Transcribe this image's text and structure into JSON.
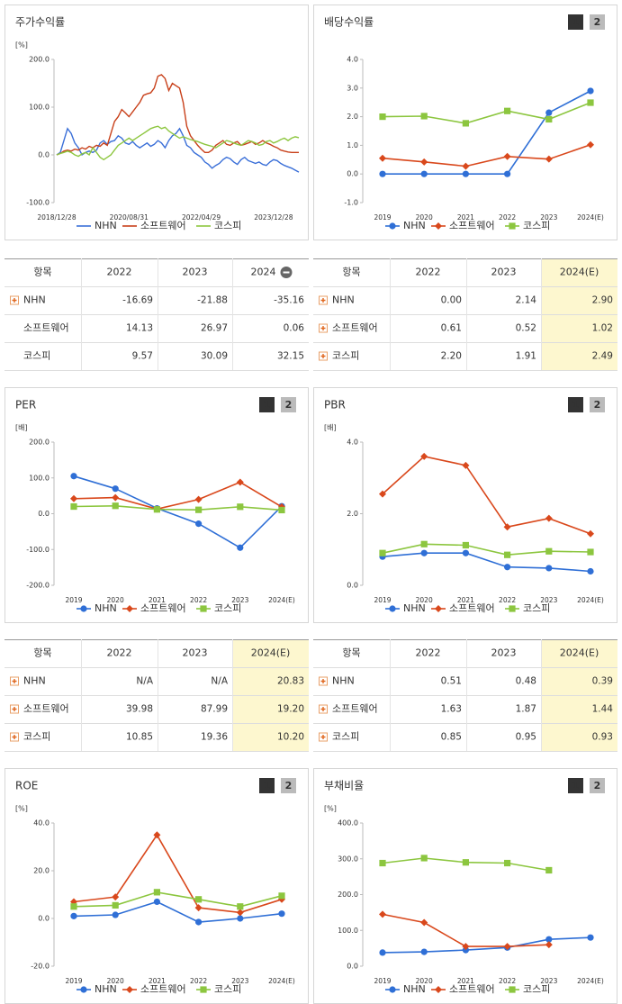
{
  "chart_data": [
    {
      "type": "line",
      "title": "주가수익률",
      "y_label": "[%]",
      "ylim": [
        -100,
        200
      ],
      "yticks": [
        {
          "value": 200,
          "label": "200.0"
        },
        {
          "value": 100,
          "label": "100.0"
        },
        {
          "value": 0,
          "label": "0.0"
        },
        {
          "value": -100,
          "label": "-100.0"
        }
      ],
      "categories": [
        "2018/12/28",
        null,
        null,
        null,
        null,
        null,
        null,
        null,
        null,
        null,
        null,
        null,
        null,
        null,
        null,
        null,
        null,
        null,
        null,
        null,
        "2020/08/31",
        null,
        null,
        null,
        null,
        null,
        null,
        null,
        null,
        null,
        null,
        null,
        null,
        null,
        null,
        null,
        null,
        null,
        null,
        null,
        "2022/04/29",
        null,
        null,
        null,
        null,
        null,
        null,
        null,
        null,
        null,
        null,
        null,
        null,
        null,
        null,
        null,
        null,
        null,
        null,
        null,
        "2023/12/28",
        null,
        null,
        null,
        null,
        null,
        null,
        null
      ],
      "markers": false,
      "series": [
        {
          "name": "NHN",
          "color": "#3a6fd8",
          "marker": "circle",
          "values": [
            0,
            5,
            30,
            55,
            45,
            25,
            15,
            0,
            5,
            8,
            5,
            10,
            25,
            30,
            22,
            28,
            30,
            40,
            35,
            25,
            22,
            28,
            20,
            15,
            20,
            25,
            18,
            22,
            30,
            25,
            15,
            30,
            40,
            45,
            55,
            40,
            20,
            15,
            5,
            0,
            -5,
            -15,
            -20,
            -28,
            -22,
            -18,
            -10,
            -5,
            -8,
            -15,
            -20,
            -10,
            -5,
            -12,
            -15,
            -18,
            -15,
            -20,
            -22,
            -15,
            -10,
            -12,
            -18,
            -22,
            -25,
            -28,
            -32,
            -36
          ]
        },
        {
          "name": "소프트웨어",
          "color": "#c8401a",
          "marker": "diamond",
          "values": [
            0,
            3,
            8,
            10,
            8,
            12,
            10,
            15,
            12,
            18,
            15,
            20,
            18,
            25,
            20,
            45,
            70,
            80,
            95,
            88,
            80,
            90,
            100,
            110,
            125,
            128,
            130,
            140,
            165,
            168,
            160,
            135,
            150,
            145,
            140,
            110,
            60,
            40,
            30,
            20,
            12,
            5,
            5,
            10,
            20,
            25,
            30,
            22,
            20,
            25,
            28,
            20,
            22,
            25,
            28,
            22,
            25,
            30,
            25,
            22,
            18,
            15,
            10,
            8,
            6,
            5,
            5,
            5
          ]
        },
        {
          "name": "코스피",
          "color": "#8dc63f",
          "marker": "square",
          "values": [
            0,
            3,
            5,
            8,
            5,
            0,
            -3,
            2,
            5,
            0,
            15,
            5,
            -5,
            -10,
            -5,
            0,
            10,
            20,
            25,
            30,
            35,
            30,
            35,
            40,
            45,
            50,
            55,
            58,
            60,
            55,
            58,
            50,
            45,
            40,
            35,
            38,
            35,
            32,
            30,
            28,
            25,
            22,
            20,
            18,
            15,
            20,
            25,
            30,
            28,
            25,
            22,
            20,
            25,
            30,
            28,
            25,
            20,
            22,
            28,
            30,
            25,
            28,
            32,
            35,
            30,
            35,
            38,
            36
          ]
        }
      ]
    },
    {
      "type": "line",
      "title": "배당수익률",
      "buttons": [
        "1",
        "2"
      ],
      "ylim": [
        -1,
        4
      ],
      "yticks": [
        {
          "value": 4,
          "label": "4.0"
        },
        {
          "value": 3,
          "label": "3.0"
        },
        {
          "value": 2,
          "label": "2.0"
        },
        {
          "value": 1,
          "label": "1.0"
        },
        {
          "value": 0,
          "label": "0.0"
        },
        {
          "value": -1,
          "label": "-1.0"
        }
      ],
      "categories": [
        "2019",
        "2020",
        "2021",
        "2022",
        "2023",
        "2024(E)"
      ],
      "markers": true,
      "series": [
        {
          "name": "NHN",
          "color": "#2f6fd6",
          "marker": "circle",
          "values": [
            0,
            0,
            0,
            0,
            2.14,
            2.9
          ]
        },
        {
          "name": "소프트웨어",
          "color": "#d9481c",
          "marker": "diamond",
          "values": [
            0.55,
            0.42,
            0.27,
            0.61,
            0.52,
            1.02
          ]
        },
        {
          "name": "코스피",
          "color": "#8cc63f",
          "marker": "square",
          "values": [
            2.0,
            2.02,
            1.77,
            2.2,
            1.91,
            2.49
          ]
        }
      ]
    },
    {
      "type": "line",
      "title": "PER",
      "buttons": [
        "1",
        "2"
      ],
      "y_label": "[배]",
      "ylim": [
        -200,
        200
      ],
      "yticks": [
        {
          "value": 200,
          "label": "200.0"
        },
        {
          "value": 100,
          "label": "100.0"
        },
        {
          "value": 0,
          "label": "0.0"
        },
        {
          "value": -100,
          "label": "-100.0"
        },
        {
          "value": -200,
          "label": "-200.0"
        }
      ],
      "categories": [
        "2019",
        "2020",
        "2021",
        "2022",
        "2023",
        "2024(E)"
      ],
      "markers": true,
      "series": [
        {
          "name": "NHN",
          "color": "#2f6fd6",
          "marker": "circle",
          "values": [
            105,
            70,
            15,
            -28,
            -95,
            20.83
          ]
        },
        {
          "name": "소프트웨어",
          "color": "#d9481c",
          "marker": "diamond",
          "values": [
            42,
            45,
            13,
            39.98,
            87.99,
            19.2
          ]
        },
        {
          "name": "코스피",
          "color": "#8cc63f",
          "marker": "square",
          "values": [
            20,
            22,
            12,
            10.85,
            19.36,
            10.2
          ]
        }
      ]
    },
    {
      "type": "line",
      "title": "PBR",
      "buttons": [
        "1",
        "2"
      ],
      "y_label": "[배]",
      "ylim": [
        0,
        4
      ],
      "yticks": [
        {
          "value": 4,
          "label": "4.0"
        },
        {
          "value": 2,
          "label": "2.0"
        },
        {
          "value": 0,
          "label": "0.0"
        }
      ],
      "categories": [
        "2019",
        "2020",
        "2021",
        "2022",
        "2023",
        "2024(E)"
      ],
      "markers": true,
      "series": [
        {
          "name": "NHN",
          "color": "#2f6fd6",
          "marker": "circle",
          "values": [
            0.8,
            0.9,
            0.9,
            0.51,
            0.48,
            0.39
          ]
        },
        {
          "name": "소프트웨어",
          "color": "#d9481c",
          "marker": "diamond",
          "values": [
            2.55,
            3.6,
            3.35,
            1.63,
            1.87,
            1.44
          ]
        },
        {
          "name": "코스피",
          "color": "#8cc63f",
          "marker": "square",
          "values": [
            0.9,
            1.15,
            1.12,
            0.85,
            0.95,
            0.93
          ]
        }
      ]
    },
    {
      "type": "line",
      "title": "ROE",
      "buttons": [
        "1",
        "2"
      ],
      "y_label": "[%]",
      "ylim": [
        -20,
        40
      ],
      "yticks": [
        {
          "value": 40,
          "label": "40.0"
        },
        {
          "value": 20,
          "label": "20.0"
        },
        {
          "value": 0,
          "label": "0.0"
        },
        {
          "value": -20,
          "label": "-20.0"
        }
      ],
      "categories": [
        "2019",
        "2020",
        "2021",
        "2022",
        "2023",
        "2024(E)"
      ],
      "markers": true,
      "series": [
        {
          "name": "NHN",
          "color": "#2f6fd6",
          "marker": "circle",
          "values": [
            1,
            1.5,
            7,
            -1.5,
            0,
            2
          ]
        },
        {
          "name": "소프트웨어",
          "color": "#d9481c",
          "marker": "diamond",
          "values": [
            7,
            9,
            35,
            4.5,
            2.5,
            8
          ]
        },
        {
          "name": "코스피",
          "color": "#8cc63f",
          "marker": "square",
          "values": [
            5,
            5.5,
            11,
            8,
            5,
            9.5
          ]
        }
      ]
    },
    {
      "type": "line",
      "title": "부채비율",
      "buttons": [
        "1",
        "2"
      ],
      "y_label": "[%]",
      "ylim": [
        0,
        400
      ],
      "yticks": [
        {
          "value": 400,
          "label": "400.0"
        },
        {
          "value": 300,
          "label": "300.0"
        },
        {
          "value": 200,
          "label": "200.0"
        },
        {
          "value": 100,
          "label": "100.0"
        },
        {
          "value": 0,
          "label": "0.0"
        }
      ],
      "categories": [
        "2019",
        "2020",
        "2021",
        "2022",
        "2023",
        "2024(E)"
      ],
      "markers": true,
      "series": [
        {
          "name": "NHN",
          "color": "#2f6fd6",
          "marker": "circle",
          "values": [
            38,
            40,
            45,
            52,
            75,
            80
          ]
        },
        {
          "name": "소프트웨어",
          "color": "#d9481c",
          "marker": "diamond",
          "values": [
            145,
            122,
            55,
            55,
            60,
            null
          ]
        },
        {
          "name": "코스피",
          "color": "#8cc63f",
          "marker": "square",
          "values": [
            288,
            302,
            290,
            288,
            268,
            null
          ]
        }
      ]
    }
  ],
  "tables": [
    {
      "header": [
        "항목",
        "2022",
        "2023",
        "2024"
      ],
      "collapse_icon": true,
      "highlight_last": false,
      "row_icons": [
        true,
        false,
        false
      ],
      "rows": [
        [
          "NHN",
          "-16.69",
          "-21.88",
          "-35.16"
        ],
        [
          "소프트웨어",
          "14.13",
          "26.97",
          "0.06"
        ],
        [
          "코스피",
          "9.57",
          "30.09",
          "32.15"
        ]
      ]
    },
    {
      "header": [
        "항목",
        "2022",
        "2023",
        "2024(E)"
      ],
      "collapse_icon": false,
      "highlight_last": true,
      "row_icons": [
        true,
        true,
        true
      ],
      "rows": [
        [
          "NHN",
          "0.00",
          "2.14",
          "2.90"
        ],
        [
          "소프트웨어",
          "0.61",
          "0.52",
          "1.02"
        ],
        [
          "코스피",
          "2.20",
          "1.91",
          "2.49"
        ]
      ]
    },
    {
      "header": [
        "항목",
        "2022",
        "2023",
        "2024(E)"
      ],
      "collapse_icon": false,
      "highlight_last": true,
      "row_icons": [
        true,
        true,
        true
      ],
      "rows": [
        [
          "NHN",
          "N/A",
          "N/A",
          "20.83"
        ],
        [
          "소프트웨어",
          "39.98",
          "87.99",
          "19.20"
        ],
        [
          "코스피",
          "10.85",
          "19.36",
          "10.20"
        ]
      ]
    },
    {
      "header": [
        "항목",
        "2022",
        "2023",
        "2024(E)"
      ],
      "collapse_icon": false,
      "highlight_last": true,
      "row_icons": [
        true,
        true,
        true
      ],
      "rows": [
        [
          "NHN",
          "0.51",
          "0.48",
          "0.39"
        ],
        [
          "소프트웨어",
          "1.63",
          "1.87",
          "1.44"
        ],
        [
          "코스피",
          "0.85",
          "0.95",
          "0.93"
        ]
      ]
    }
  ]
}
